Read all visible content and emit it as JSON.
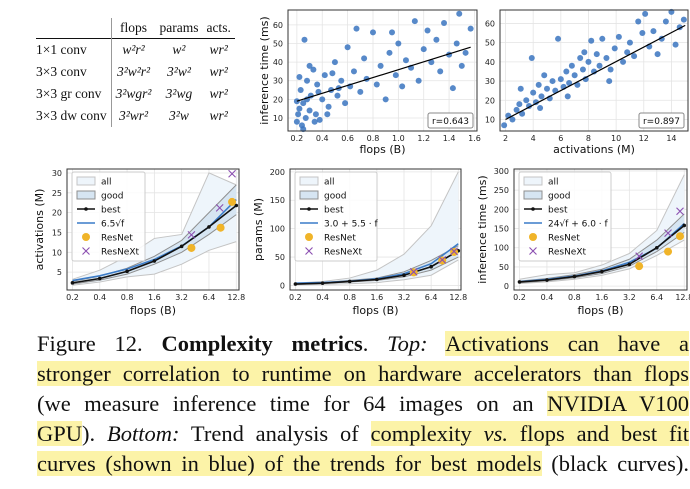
{
  "table": {
    "headers": [
      "",
      "flops",
      "params",
      "acts."
    ],
    "rows": [
      [
        "1×1 conv",
        "w²r²",
        "w²",
        "wr²"
      ],
      [
        "3×3 conv",
        "3²w²r²",
        "3²w²",
        "wr²"
      ],
      [
        "3×3 gr conv",
        "3²wgr²",
        "3²wg",
        "wr²"
      ],
      [
        "3×3 dw conv",
        "3²wr²",
        "3²w",
        "wr²"
      ]
    ]
  },
  "chart_data": [
    {
      "type": "scatter",
      "xlabel": "flops (B)",
      "ylabel": "inference time (ms)",
      "xlim": [
        0.13,
        1.62
      ],
      "ylim": [
        3,
        68
      ],
      "xticks": [
        0.2,
        0.4,
        0.6,
        0.8,
        1.0,
        1.2,
        1.4,
        1.6
      ],
      "xtick_labels": [
        "0.2",
        "0.4",
        "0.6",
        "0.8",
        "1.0",
        "1.2",
        "1.4",
        "1.6"
      ],
      "yticks": [
        10,
        20,
        30,
        40,
        50,
        60
      ],
      "annotation": "r=0.643",
      "fit_line": [
        [
          0.2,
          19
        ],
        [
          1.57,
          48
        ]
      ],
      "points": [
        [
          0.2,
          8
        ],
        [
          0.21,
          12
        ],
        [
          0.22,
          15
        ],
        [
          0.23,
          25
        ],
        [
          0.24,
          6
        ],
        [
          0.25,
          18
        ],
        [
          0.26,
          52
        ],
        [
          0.27,
          10
        ],
        [
          0.28,
          30
        ],
        [
          0.3,
          14
        ],
        [
          0.31,
          22
        ],
        [
          0.33,
          36
        ],
        [
          0.35,
          12
        ],
        [
          0.36,
          28
        ],
        [
          0.38,
          9
        ],
        [
          0.4,
          20
        ],
        [
          0.42,
          33
        ],
        [
          0.45,
          16
        ],
        [
          0.47,
          25
        ],
        [
          0.5,
          40
        ],
        [
          0.52,
          22
        ],
        [
          0.55,
          30
        ],
        [
          0.58,
          18
        ],
        [
          0.6,
          48
        ],
        [
          0.62,
          27
        ],
        [
          0.65,
          35
        ],
        [
          0.67,
          58
        ],
        [
          0.7,
          24
        ],
        [
          0.73,
          42
        ],
        [
          0.75,
          31
        ],
        [
          0.8,
          56
        ],
        [
          0.83,
          28
        ],
        [
          0.86,
          38
        ],
        [
          0.9,
          20
        ],
        [
          0.93,
          45
        ],
        [
          0.95,
          56
        ],
        [
          0.98,
          33
        ],
        [
          1.0,
          50
        ],
        [
          1.03,
          27
        ],
        [
          1.06,
          41
        ],
        [
          1.1,
          37
        ],
        [
          1.13,
          62
        ],
        [
          1.16,
          30
        ],
        [
          1.2,
          47
        ],
        [
          1.23,
          57
        ],
        [
          1.26,
          40
        ],
        [
          1.3,
          52
        ],
        [
          1.33,
          35
        ],
        [
          1.36,
          61
        ],
        [
          1.4,
          44
        ],
        [
          1.43,
          26
        ],
        [
          1.46,
          50
        ],
        [
          1.48,
          66
        ],
        [
          1.5,
          38
        ],
        [
          1.53,
          45
        ],
        [
          1.57,
          58
        ],
        [
          0.2,
          19
        ],
        [
          0.22,
          32
        ],
        [
          0.25,
          4
        ],
        [
          0.28,
          20
        ],
        [
          0.3,
          38
        ],
        [
          0.34,
          8
        ],
        [
          0.37,
          24
        ],
        [
          0.44,
          12
        ],
        [
          0.48,
          34
        ],
        [
          0.53,
          26
        ]
      ]
    },
    {
      "type": "scatter",
      "xlabel": "activations (M)",
      "ylabel": "",
      "xlim": [
        1.6,
        15.2
      ],
      "ylim": [
        4,
        67
      ],
      "xticks": [
        2,
        4,
        6,
        8,
        10,
        12,
        14
      ],
      "xtick_labels": [
        "2",
        "4",
        "6",
        "8",
        "10",
        "12",
        "14"
      ],
      "yticks": [
        10,
        20,
        30,
        40,
        50,
        60
      ],
      "annotation": "r=0.897",
      "fit_line": [
        [
          2,
          10
        ],
        [
          15,
          59
        ]
      ],
      "points": [
        [
          1.9,
          7
        ],
        [
          2.2,
          12
        ],
        [
          2.5,
          10
        ],
        [
          2.8,
          15
        ],
        [
          3,
          18
        ],
        [
          3.2,
          13
        ],
        [
          3.5,
          20
        ],
        [
          3.7,
          17
        ],
        [
          3.9,
          42
        ],
        [
          4,
          24
        ],
        [
          4.2,
          19
        ],
        [
          4.4,
          28
        ],
        [
          4.6,
          22
        ],
        [
          4.8,
          33
        ],
        [
          5,
          26
        ],
        [
          5.2,
          21
        ],
        [
          5.4,
          30
        ],
        [
          5.6,
          25
        ],
        [
          5.8,
          52
        ],
        [
          6,
          31
        ],
        [
          6.2,
          27
        ],
        [
          6.4,
          35
        ],
        [
          6.6,
          29
        ],
        [
          6.8,
          38
        ],
        [
          7,
          33
        ],
        [
          7.2,
          28
        ],
        [
          7.4,
          42
        ],
        [
          7.6,
          36
        ],
        [
          7.8,
          31
        ],
        [
          8,
          40
        ],
        [
          8.2,
          51
        ],
        [
          8.4,
          35
        ],
        [
          8.6,
          44
        ],
        [
          8.8,
          38
        ],
        [
          9,
          52
        ],
        [
          9.3,
          42
        ],
        [
          9.6,
          36
        ],
        [
          9.9,
          47
        ],
        [
          10.2,
          53
        ],
        [
          10.5,
          40
        ],
        [
          10.8,
          45
        ],
        [
          11,
          50
        ],
        [
          11.3,
          43
        ],
        [
          11.6,
          61
        ],
        [
          11.9,
          55
        ],
        [
          12.1,
          65
        ],
        [
          12.4,
          48
        ],
        [
          12.7,
          56
        ],
        [
          13,
          44
        ],
        [
          13.3,
          52
        ],
        [
          13.6,
          61
        ],
        [
          14,
          66
        ],
        [
          14.3,
          49
        ],
        [
          14.6,
          58
        ],
        [
          14.9,
          62
        ],
        [
          3.1,
          26
        ],
        [
          4.5,
          16
        ],
        [
          6.5,
          22
        ],
        [
          7.7,
          45
        ],
        [
          9.5,
          30
        ]
      ]
    },
    {
      "type": "line",
      "xlabel": "flops (B)",
      "ylabel": "activations (M)",
      "x": [
        0.2,
        0.4,
        0.8,
        1.6,
        3.2,
        6.4,
        12.8
      ],
      "xtick_labels": [
        "0.2",
        "0.4",
        "0.8",
        "1.6",
        "3.2",
        "6.4",
        "12.8"
      ],
      "xscale": "log2",
      "ylim": [
        0.5,
        31
      ],
      "yticks": [
        5,
        10,
        15,
        20,
        25,
        30
      ],
      "legend": [
        "all",
        "good",
        "best",
        "6.5√f",
        "ResNet",
        "ResNeXt"
      ],
      "legend_position": "top-left",
      "all_band": {
        "lower": [
          1.7,
          2.5,
          3.8,
          4.5,
          7,
          10.5,
          12.7
        ],
        "upper": [
          3.2,
          5.5,
          9,
          13.5,
          14.5,
          30,
          27
        ]
      },
      "good_band": {
        "lower": [
          2,
          3,
          4.5,
          7,
          10,
          14.5,
          19.5
        ],
        "upper": [
          2.7,
          4,
          6,
          9,
          13,
          20,
          27
        ]
      },
      "best": [
        2.3,
        3.4,
        5.2,
        7.8,
        11.5,
        16.4,
        21.8
      ],
      "fit": [
        2.9,
        4.1,
        5.8,
        8.2,
        11.6,
        16.4,
        23.3
      ],
      "resnet": [
        [
          4.1,
          11.1
        ],
        [
          8.6,
          16.2
        ],
        [
          11.5,
          22.7
        ]
      ],
      "resnext": [
        [
          4.1,
          14.4
        ],
        [
          8.4,
          21.2
        ],
        [
          11.5,
          29.8
        ]
      ]
    },
    {
      "type": "line",
      "xlabel": "flops (B)",
      "ylabel": "params (M)",
      "x": [
        0.2,
        0.4,
        0.8,
        1.6,
        3.2,
        6.4,
        12.8
      ],
      "xtick_labels": [
        "0.2",
        "0.4",
        "0.8",
        "1.6",
        "3.2",
        "6.4",
        "12.8"
      ],
      "xscale": "log2",
      "ylim": [
        -8,
        205
      ],
      "yticks": [
        0,
        50,
        100,
        150,
        200
      ],
      "legend": [
        "all",
        "good",
        "best",
        "3.0 + 5.5 · f",
        "ResNet",
        "ResNeXt"
      ],
      "legend_position": "top-left",
      "all_band": {
        "lower": [
          1,
          2,
          3,
          5,
          10,
          18,
          45
        ],
        "upper": [
          4,
          7,
          13,
          27,
          55,
          105,
          200
        ]
      },
      "good_band": {
        "lower": [
          2,
          3.5,
          6,
          9,
          15,
          27,
          50
        ],
        "upper": [
          3.5,
          5,
          9,
          13,
          24,
          44,
          70
        ]
      },
      "best": [
        2.5,
        4,
        7,
        10.5,
        18,
        33,
        61
      ],
      "fit": [
        4.1,
        5.2,
        7.4,
        11.8,
        20.6,
        38.2,
        73.4
      ],
      "resnet": [
        [
          4.1,
          23
        ],
        [
          8.5,
          44
        ],
        [
          11.5,
          59
        ]
      ],
      "resnext": [
        [
          4.1,
          24
        ],
        [
          8.5,
          45
        ],
        [
          11.5,
          60
        ]
      ]
    },
    {
      "type": "line",
      "xlabel": "flops (B)",
      "ylabel": "inference time (ms)",
      "x": [
        0.2,
        0.4,
        0.8,
        1.6,
        3.2,
        6.4,
        12.8
      ],
      "xtick_labels": [
        "0.2",
        "0.4",
        "0.8",
        "1.6",
        "3.2",
        "6.4",
        "12.8"
      ],
      "xscale": "log2",
      "ylim": [
        -10,
        305
      ],
      "yticks": [
        0,
        50,
        100,
        150,
        200,
        250,
        300
      ],
      "legend": [
        "all",
        "good",
        "best",
        "24√f + 6.0 · f",
        "ResNet",
        "ResNeXt"
      ],
      "legend_position": "top-left",
      "all_band": {
        "lower": [
          7,
          11,
          18,
          28,
          45,
          80,
          120
        ],
        "upper": [
          18,
          30,
          35,
          55,
          85,
          145,
          290
        ]
      },
      "good_band": {
        "lower": [
          9,
          14,
          22,
          33,
          52,
          90,
          140
        ],
        "upper": [
          13,
          20,
          30,
          44,
          70,
          120,
          188
        ]
      },
      "best": [
        11,
        16,
        25,
        38,
        57,
        100,
        158
      ],
      "fit": [
        11.9,
        17.6,
        26.3,
        40,
        62,
        99,
        163
      ],
      "resnet": [
        [
          4.1,
          52
        ],
        [
          8.5,
          90
        ],
        [
          11.5,
          130
        ]
      ],
      "resnext": [
        [
          4.1,
          78
        ],
        [
          8.5,
          138
        ],
        [
          11.5,
          195
        ]
      ]
    }
  ],
  "caption": {
    "lines": [
      [
        {
          "t": "Figure 12. "
        },
        {
          "t": "Complexity metrics",
          "s": "b"
        },
        {
          "t": ". "
        },
        {
          "t": "Top:",
          "s": "i"
        },
        {
          "t": " "
        },
        {
          "t": "Activations can have a",
          "h": true
        }
      ],
      [
        {
          "t": "stronger correlation to runtime on hardware accelerators than flops",
          "h": true
        }
      ],
      [
        {
          "t": "(we measure inference time for 64 images on an "
        },
        {
          "t": "NVIDIA V100",
          "h": true
        }
      ],
      [
        {
          "t": "GPU",
          "h": true
        },
        {
          "t": "). "
        },
        {
          "t": "Bottom:",
          "s": "i"
        },
        {
          "t": " Trend analysis of "
        },
        {
          "t": "complexity ",
          "h": true
        },
        {
          "t": "vs.",
          "h": true,
          "s": "i"
        },
        {
          "t": " flops and best fit",
          "h": true
        }
      ],
      [
        {
          "t": "curves (shown in blue) of the trends for best models",
          "h": true
        },
        {
          "t": " (black curves)."
        }
      ]
    ]
  },
  "colors": {
    "points": "#3a74bf",
    "fit": "#3a7bc8",
    "best": "#111111",
    "resnet": "#f0b429",
    "resnext": "#8b4fb0",
    "all_fill": "#eef5fb",
    "good_fill": "#d6e5f2",
    "highlight": "#fcf3a8"
  }
}
